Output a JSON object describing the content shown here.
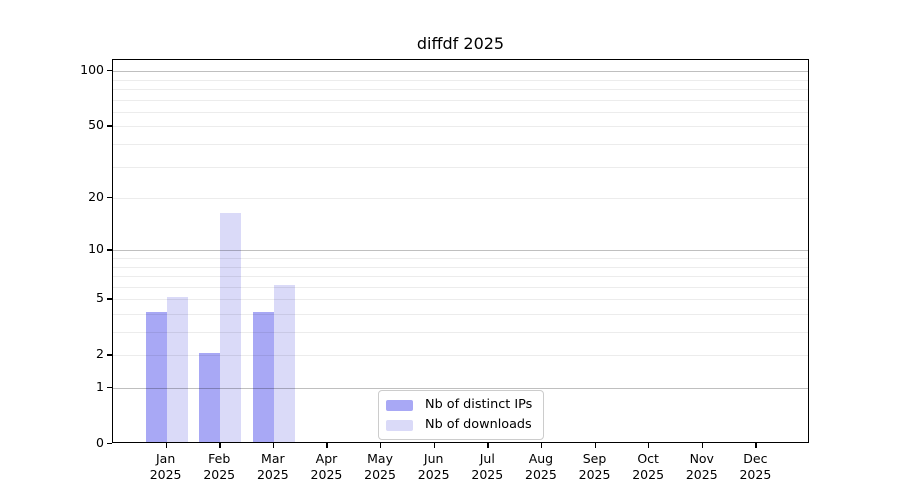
{
  "figure": {
    "background": "#ffffff"
  },
  "chart_data": {
    "type": "bar",
    "title": "diffdf 2025",
    "categories": [
      "Jan",
      "Feb",
      "Mar",
      "Apr",
      "May",
      "Jun",
      "Jul",
      "Aug",
      "Sep",
      "Oct",
      "Nov",
      "Dec"
    ],
    "category_year": "2025",
    "series": [
      {
        "name": "Nb of distinct IPs",
        "color": "#a8a8f5",
        "values": [
          4,
          2,
          4,
          0,
          0,
          0,
          0,
          0,
          0,
          0,
          0,
          0
        ]
      },
      {
        "name": "Nb of downloads",
        "color": "#dadaf8",
        "values": [
          5,
          16,
          6,
          0,
          0,
          0,
          0,
          0,
          0,
          0,
          0,
          0
        ]
      }
    ],
    "yscale": "log1p",
    "ylim": [
      0,
      115
    ],
    "yticks": [
      0,
      1,
      2,
      5,
      10,
      20,
      50,
      100
    ],
    "grid": {
      "on": true,
      "major_values": [
        1,
        10,
        100
      ],
      "minor_values": [
        2,
        3,
        4,
        5,
        6,
        7,
        8,
        9,
        20,
        30,
        40,
        50,
        60,
        70,
        80,
        90
      ],
      "major_color": "#c3c3c3",
      "minor_color": "#ececec"
    },
    "legend": {
      "position": "lower center",
      "items": [
        "Nb of distinct IPs",
        "Nb of downloads"
      ]
    },
    "axis_color": "#000000",
    "text_color": "#000000"
  }
}
